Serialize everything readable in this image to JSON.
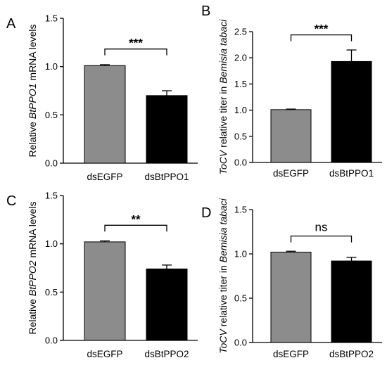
{
  "colors": {
    "control_bar": "#8c8c8c",
    "treatment_bar": "#000000",
    "axis": "#000000"
  },
  "chart_data": [
    {
      "panel": "A",
      "type": "bar",
      "categories": [
        "dsEGFP",
        "dsBtPPO1"
      ],
      "values": [
        1.01,
        0.7
      ],
      "errors": [
        0.01,
        0.05
      ],
      "ylabel_prefix": "Relative ",
      "ylabel_italic": "BtPPO1",
      "ylabel_suffix": " mRNA levels",
      "ylim": [
        0,
        1.5
      ],
      "yticks": [
        0,
        0.5,
        1.0,
        1.5
      ],
      "ytick_labels": [
        "0.0",
        "0.5",
        "1.0",
        "1.5"
      ],
      "significance": "***",
      "grid": false
    },
    {
      "panel": "B",
      "type": "bar",
      "categories": [
        "dsEGFP",
        "dsBtPPO1"
      ],
      "values": [
        1.01,
        1.93
      ],
      "errors": [
        0.01,
        0.22
      ],
      "ylabel_prefix": "",
      "ylabel_italic": "ToCV",
      "ylabel_suffix": " relative titer in ",
      "ylabel_italic2": "Bemisia tabaci",
      "ylim": [
        0,
        2.5
      ],
      "yticks": [
        0,
        0.5,
        1.0,
        1.5,
        2.0,
        2.5
      ],
      "ytick_labels": [
        "0.0",
        "0.5",
        "1.0",
        "1.5",
        "2.0",
        "2.5"
      ],
      "significance": "***",
      "grid": false
    },
    {
      "panel": "C",
      "type": "bar",
      "categories": [
        "dsEGFP",
        "dsBtPPO2"
      ],
      "values": [
        1.02,
        0.74
      ],
      "errors": [
        0.01,
        0.04
      ],
      "ylabel_prefix": "Relative ",
      "ylabel_italic": "BtPPO2",
      "ylabel_suffix": " mRNA levels",
      "ylim": [
        0,
        1.5
      ],
      "yticks": [
        0,
        0.5,
        1.0,
        1.5
      ],
      "ytick_labels": [
        "0.0",
        "0.5",
        "1.0",
        "1.5"
      ],
      "significance": "**",
      "grid": false
    },
    {
      "panel": "D",
      "type": "bar",
      "categories": [
        "dsEGFP",
        "dsBtPPO2"
      ],
      "values": [
        1.02,
        0.92
      ],
      "errors": [
        0.01,
        0.04
      ],
      "ylabel_prefix": "",
      "ylabel_italic": "ToCV",
      "ylabel_suffix": " relative titer in ",
      "ylabel_italic2": "Bemisia tabaci",
      "ylim": [
        0,
        1.5
      ],
      "yticks": [
        0,
        0.5,
        1.0,
        1.5
      ],
      "ytick_labels": [
        "0.0",
        "0.5",
        "1.0",
        "1.5"
      ],
      "significance": "ns",
      "grid": false
    }
  ]
}
